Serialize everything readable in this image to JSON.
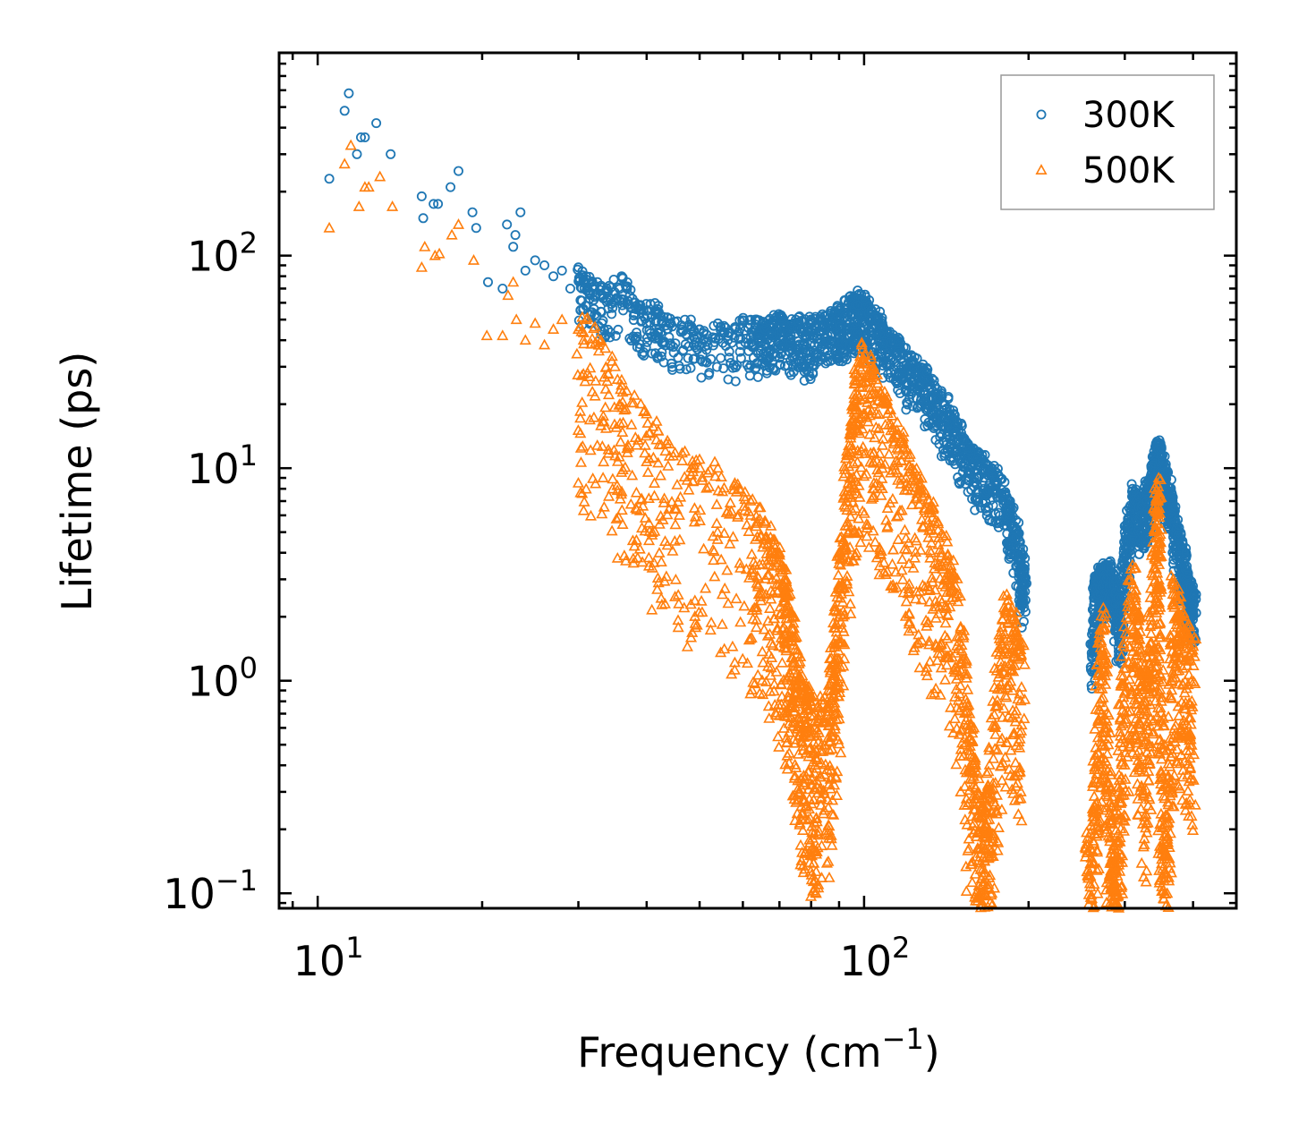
{
  "chart_data": {
    "type": "scatter",
    "xscale": "log",
    "yscale": "log",
    "xlim": [
      8.5,
      480
    ],
    "ylim": [
      0.085,
      900
    ],
    "xlabel": {
      "text": "Frequency (cm",
      "sup": "−1",
      "suffix": ")"
    },
    "ylabel": "Lifetime (ps)",
    "xticks": [
      {
        "value": 10,
        "base": "10",
        "exp": "1"
      },
      {
        "value": 100,
        "base": "10",
        "exp": "2"
      }
    ],
    "yticks": [
      {
        "value": 0.1,
        "base": "10",
        "exp": "−1"
      },
      {
        "value": 1,
        "base": "10",
        "exp": "0"
      },
      {
        "value": 10,
        "base": "10",
        "exp": "1"
      },
      {
        "value": 100,
        "base": "10",
        "exp": "2"
      }
    ],
    "legend": {
      "location": "upper right"
    },
    "series": [
      {
        "name": "300K",
        "marker": "circle-open",
        "color": "#1f77b4",
        "points": [
          [
            10.5,
            230
          ],
          [
            11.2,
            480
          ],
          [
            11.4,
            580
          ],
          [
            11.8,
            300
          ],
          [
            12.0,
            360
          ],
          [
            12.2,
            360
          ],
          [
            12.8,
            420
          ],
          [
            13.6,
            300
          ],
          [
            15.5,
            190
          ],
          [
            15.6,
            150
          ],
          [
            16.3,
            175
          ],
          [
            16.6,
            175
          ],
          [
            17.5,
            210
          ],
          [
            18.1,
            250
          ],
          [
            19.2,
            160
          ],
          [
            19.5,
            135
          ],
          [
            20.5,
            75
          ],
          [
            21.8,
            70
          ],
          [
            22.2,
            140
          ],
          [
            22.8,
            110
          ],
          [
            23.0,
            125
          ],
          [
            23.5,
            160
          ],
          [
            24.0,
            85
          ],
          [
            25.0,
            95
          ],
          [
            26.0,
            90
          ],
          [
            27.0,
            80
          ],
          [
            28.0,
            85
          ],
          [
            29.0,
            70
          ],
          [
            30.0,
            88
          ],
          [
            31.0,
            80
          ],
          [
            32.5,
            75
          ],
          [
            34.0,
            68
          ],
          [
            36.0,
            80
          ],
          [
            38.0,
            60
          ],
          [
            40.0,
            55
          ],
          [
            42.0,
            58
          ],
          [
            44.0,
            48
          ],
          [
            47.0,
            50
          ],
          [
            50.0,
            45
          ],
          [
            54.0,
            48
          ],
          [
            58.0,
            46
          ],
          [
            62.0,
            50
          ],
          [
            66.0,
            47
          ],
          [
            70.0,
            52
          ],
          [
            75.0,
            50
          ],
          [
            80.0,
            48
          ],
          [
            85.0,
            52
          ],
          [
            90.0,
            55
          ],
          [
            95.0,
            62
          ],
          [
            98.0,
            66
          ],
          [
            102.0,
            58
          ],
          [
            108.0,
            48
          ],
          [
            115.0,
            40
          ],
          [
            122.0,
            34
          ],
          [
            130.0,
            28
          ],
          [
            138.0,
            22
          ],
          [
            146.0,
            18
          ],
          [
            155.0,
            13
          ],
          [
            165.0,
            11
          ],
          [
            175.0,
            9.5
          ],
          [
            185.0,
            7
          ],
          [
            193.0,
            4.5
          ],
          [
            197.0,
            3
          ],
          [
            262.0,
            1.5
          ],
          [
            266.0,
            3
          ],
          [
            270.0,
            3.3
          ],
          [
            275.0,
            3.4
          ],
          [
            280.0,
            3.5
          ],
          [
            286.0,
            3.2
          ],
          [
            294.0,
            2
          ],
          [
            300.0,
            5
          ],
          [
            310.0,
            8
          ],
          [
            318.0,
            7
          ],
          [
            326.0,
            7.5
          ],
          [
            334.0,
            9
          ],
          [
            342.0,
            12.5
          ],
          [
            348.0,
            13
          ],
          [
            356.0,
            10
          ],
          [
            366.0,
            7.5
          ],
          [
            376.0,
            5
          ],
          [
            386.0,
            4
          ],
          [
            395.0,
            2.8
          ],
          [
            402.0,
            2.5
          ]
        ]
      },
      {
        "name": "500K",
        "marker": "triangle-open",
        "color": "#ff7f0e",
        "points": [
          [
            10.5,
            135
          ],
          [
            11.2,
            270
          ],
          [
            11.5,
            330
          ],
          [
            11.9,
            170
          ],
          [
            12.2,
            210
          ],
          [
            12.4,
            210
          ],
          [
            13.0,
            235
          ],
          [
            13.7,
            170
          ],
          [
            15.5,
            88
          ],
          [
            15.7,
            110
          ],
          [
            16.4,
            100
          ],
          [
            16.7,
            102
          ],
          [
            17.6,
            125
          ],
          [
            18.1,
            140
          ],
          [
            19.3,
            95
          ],
          [
            20.4,
            42
          ],
          [
            21.8,
            42
          ],
          [
            22.3,
            65
          ],
          [
            22.8,
            75
          ],
          [
            23.1,
            50
          ],
          [
            24.0,
            40
          ],
          [
            25.0,
            48
          ],
          [
            26.0,
            38
          ],
          [
            27.0,
            45
          ],
          [
            28.0,
            50
          ],
          [
            30.0,
            45
          ],
          [
            31.0,
            50
          ],
          [
            33.0,
            40
          ],
          [
            35.0,
            30
          ],
          [
            36.0,
            26
          ],
          [
            38.0,
            22
          ],
          [
            40.0,
            18
          ],
          [
            42.0,
            15
          ],
          [
            44.0,
            13
          ],
          [
            47.0,
            12
          ],
          [
            50.0,
            11
          ],
          [
            54.0,
            10
          ],
          [
            58.0,
            8.5
          ],
          [
            62.0,
            7
          ],
          [
            66.0,
            5.5
          ],
          [
            70.0,
            4
          ],
          [
            72.0,
            3
          ],
          [
            74.0,
            2
          ],
          [
            76.0,
            1.2
          ],
          [
            78.0,
            0.9
          ],
          [
            80.0,
            0.85
          ],
          [
            82.0,
            0.75
          ],
          [
            86.0,
            0.9
          ],
          [
            88.0,
            1.5
          ],
          [
            90.0,
            4
          ],
          [
            93.0,
            12
          ],
          [
            96.0,
            25
          ],
          [
            99.0,
            38
          ],
          [
            104.0,
            30
          ],
          [
            110.0,
            20
          ],
          [
            118.0,
            14
          ],
          [
            126.0,
            9
          ],
          [
            134.0,
            6.5
          ],
          [
            142.0,
            4.5
          ],
          [
            150.0,
            2.5
          ],
          [
            156.0,
            0.7
          ],
          [
            160.0,
            0.4
          ],
          [
            164.0,
            0.25
          ],
          [
            168.0,
            0.3
          ],
          [
            172.0,
            0.8
          ],
          [
            180.0,
            2.5
          ],
          [
            188.0,
            2
          ],
          [
            195.0,
            1.5
          ],
          [
            255.0,
            0.17
          ],
          [
            262.0,
            0.25
          ],
          [
            268.0,
            1.2
          ],
          [
            274.0,
            2.2
          ],
          [
            280.0,
            0.5
          ],
          [
            285.0,
            0.16
          ],
          [
            288.0,
            0.13
          ],
          [
            292.0,
            0.3
          ],
          [
            298.0,
            1.5
          ],
          [
            310.0,
            3.5
          ],
          [
            318.0,
            2
          ],
          [
            326.0,
            0.8
          ],
          [
            334.0,
            1.8
          ],
          [
            342.0,
            7
          ],
          [
            346.0,
            9
          ],
          [
            350.0,
            0.8
          ],
          [
            354.0,
            0.15
          ],
          [
            360.0,
            0.35
          ],
          [
            368.0,
            3
          ],
          [
            378.0,
            2.5
          ],
          [
            390.0,
            1.8
          ],
          [
            402.0,
            1.6
          ]
        ]
      }
    ]
  }
}
